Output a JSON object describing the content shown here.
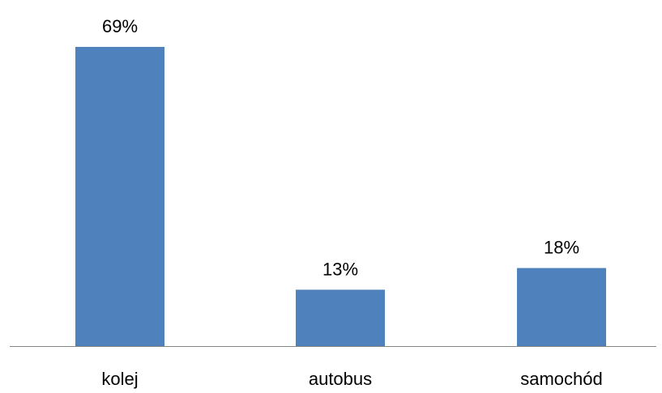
{
  "chart_data": {
    "type": "bar",
    "categories": [
      "kolej",
      "autobus",
      "samochód"
    ],
    "values": [
      69,
      13,
      18
    ],
    "value_labels": [
      "69%",
      "13%",
      "18%"
    ],
    "unit": "%",
    "title": "",
    "xlabel": "",
    "ylabel": "",
    "ylim": [
      0,
      80
    ],
    "grid": false,
    "legend": "none",
    "colors": {
      "bar": "#4f81bd",
      "axis": "#868686",
      "text": "#000000"
    }
  }
}
